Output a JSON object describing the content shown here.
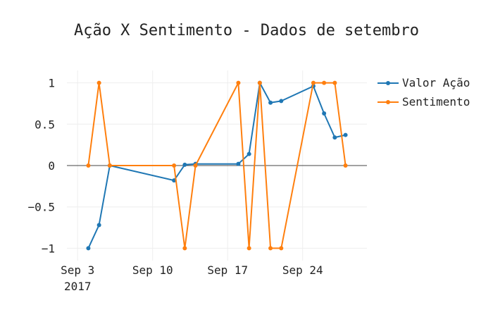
{
  "chart_data": {
    "type": "line",
    "title": "Ação X Sentimento - Dados de setembro",
    "xlabel": "",
    "ylabel": "",
    "x_axis": {
      "type": "date",
      "range": [
        "2017-09-02",
        "2017-09-30"
      ],
      "ticks": [
        {
          "value": "2017-09-03",
          "label": "Sep 3",
          "sublabel": "2017"
        },
        {
          "value": "2017-09-10",
          "label": "Sep 10",
          "sublabel": ""
        },
        {
          "value": "2017-09-17",
          "label": "Sep 17",
          "sublabel": ""
        },
        {
          "value": "2017-09-24",
          "label": "Sep 24",
          "sublabel": ""
        }
      ]
    },
    "y_axis": {
      "range": [
        -1.15,
        1.15
      ],
      "ticks": [
        {
          "value": 1,
          "label": "1"
        },
        {
          "value": 0.5,
          "label": "0.5"
        },
        {
          "value": 0,
          "label": "0"
        },
        {
          "value": -0.5,
          "label": "−0.5"
        },
        {
          "value": -1,
          "label": "−1"
        }
      ]
    },
    "grid": true,
    "legend_position": "top-right",
    "series": [
      {
        "name": "Valor Ação",
        "color": "#1f77b4",
        "points": [
          {
            "x": "2017-09-04",
            "y": -1
          },
          {
            "x": "2017-09-05",
            "y": -0.72
          },
          {
            "x": "2017-09-06",
            "y": 0
          },
          {
            "x": "2017-09-12",
            "y": -0.18
          },
          {
            "x": "2017-09-13",
            "y": 0.01
          },
          {
            "x": "2017-09-14",
            "y": 0.02
          },
          {
            "x": "2017-09-18",
            "y": 0.02
          },
          {
            "x": "2017-09-19",
            "y": 0.14
          },
          {
            "x": "2017-09-20",
            "y": 1
          },
          {
            "x": "2017-09-21",
            "y": 0.76
          },
          {
            "x": "2017-09-22",
            "y": 0.78
          },
          {
            "x": "2017-09-25",
            "y": 0.96
          },
          {
            "x": "2017-09-26",
            "y": 0.63
          },
          {
            "x": "2017-09-27",
            "y": 0.34
          },
          {
            "x": "2017-09-28",
            "y": 0.37
          }
        ]
      },
      {
        "name": "Sentimento",
        "color": "#ff7f0e",
        "points": [
          {
            "x": "2017-09-04",
            "y": 0
          },
          {
            "x": "2017-09-05",
            "y": 1
          },
          {
            "x": "2017-09-06",
            "y": 0
          },
          {
            "x": "2017-09-12",
            "y": 0
          },
          {
            "x": "2017-09-13",
            "y": -1
          },
          {
            "x": "2017-09-14",
            "y": 0
          },
          {
            "x": "2017-09-18",
            "y": 1
          },
          {
            "x": "2017-09-19",
            "y": -1
          },
          {
            "x": "2017-09-20",
            "y": 1
          },
          {
            "x": "2017-09-21",
            "y": -1
          },
          {
            "x": "2017-09-22",
            "y": -1
          },
          {
            "x": "2017-09-25",
            "y": 1
          },
          {
            "x": "2017-09-26",
            "y": 1
          },
          {
            "x": "2017-09-27",
            "y": 1
          },
          {
            "x": "2017-09-28",
            "y": 0
          }
        ]
      }
    ]
  }
}
